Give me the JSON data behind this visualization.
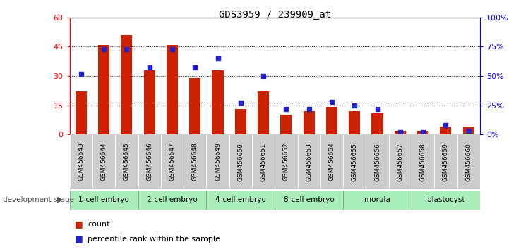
{
  "title": "GDS3959 / 239909_at",
  "samples": [
    "GSM456643",
    "GSM456644",
    "GSM456645",
    "GSM456646",
    "GSM456647",
    "GSM456648",
    "GSM456649",
    "GSM456650",
    "GSM456651",
    "GSM456652",
    "GSM456653",
    "GSM456654",
    "GSM456655",
    "GSM456656",
    "GSM456657",
    "GSM456658",
    "GSM456659",
    "GSM456660"
  ],
  "counts": [
    22,
    46,
    51,
    33,
    46,
    29,
    33,
    13,
    22,
    10,
    12,
    14,
    12,
    11,
    2,
    2,
    4,
    4
  ],
  "percentile_ranks": [
    52,
    73,
    73,
    57,
    73,
    57,
    65,
    27,
    50,
    22,
    22,
    28,
    25,
    22,
    2,
    2,
    8,
    3
  ],
  "stages": [
    {
      "label": "1-cell embryo",
      "start": 0,
      "end": 3
    },
    {
      "label": "2-cell embryo",
      "start": 3,
      "end": 6
    },
    {
      "label": "4-cell embryo",
      "start": 6,
      "end": 9
    },
    {
      "label": "8-cell embryo",
      "start": 9,
      "end": 12
    },
    {
      "label": "morula",
      "start": 12,
      "end": 15
    },
    {
      "label": "blastocyst",
      "start": 15,
      "end": 18
    }
  ],
  "bar_color": "#cc2200",
  "marker_color": "#2222cc",
  "ylim_left": [
    0,
    60
  ],
  "ylim_right": [
    0,
    100
  ],
  "yticks_left": [
    0,
    15,
    30,
    45,
    60
  ],
  "yticks_right": [
    0,
    25,
    50,
    75,
    100
  ],
  "stage_bg_color": "#aaeebb",
  "tick_label_bg": "#cccccc",
  "dev_stage_arrow_text": "development stage",
  "legend_count_label": "count",
  "legend_pct_label": "percentile rank within the sample",
  "title_fontsize": 10,
  "bar_width": 0.5
}
